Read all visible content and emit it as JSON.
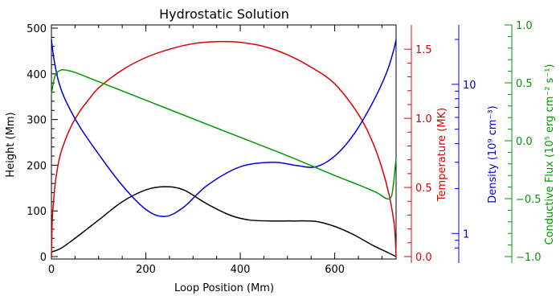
{
  "chart_data": {
    "type": "line",
    "title": "Hydrostatic Solution",
    "xlabel": "Loop Position (Mm)",
    "xlim": [
      0,
      730
    ],
    "xticks": [
      0,
      200,
      400,
      600
    ],
    "grid": false,
    "colors": {
      "height": "#000000",
      "temperature": "#dd0000",
      "density": "#0000dd",
      "flux": "#009900"
    },
    "axes": {
      "height": {
        "label": "Height (Mm)",
        "range": [
          0,
          500
        ],
        "ticks": [
          0,
          100,
          200,
          300,
          400,
          500
        ],
        "tick_labels": [
          "0",
          "100",
          "200",
          "300",
          "400",
          "500"
        ],
        "side": "left"
      },
      "temperature": {
        "label": "Temperature (MK)",
        "range": [
          0,
          1.6
        ],
        "ticks": [
          0,
          0.5,
          1.0,
          1.5
        ],
        "tick_labels": [
          "0.0",
          "0.5",
          "1.0",
          "1.5"
        ],
        "side": "right"
      },
      "density": {
        "label": "Density (10⁹ cm⁻³)",
        "scale": "log",
        "range": [
          0.7,
          25
        ],
        "ticks": [
          1,
          10
        ],
        "tick_labels": [
          "1",
          "10"
        ],
        "side": "right"
      },
      "flux": {
        "label": "Conductive Flux (10⁵ erg cm⁻² s⁻¹)",
        "range": [
          -1.0,
          1.0
        ],
        "ticks": [
          -1.0,
          -0.5,
          0.0,
          0.5,
          1.0
        ],
        "tick_labels": [
          "−1.0",
          "−0.5",
          "0.0",
          "0.5",
          "1.0"
        ],
        "side": "right"
      }
    },
    "series": [
      {
        "key": "height",
        "axis": "height",
        "x": [
          0,
          20,
          50,
          100,
          150,
          200,
          240,
          280,
          330,
          380,
          420,
          470,
          510,
          560,
          600,
          640,
          680,
          710,
          730
        ],
        "y": [
          10,
          18,
          40,
          80,
          120,
          146,
          153,
          146,
          115,
          90,
          80,
          78,
          78,
          77,
          66,
          48,
          25,
          10,
          0
        ]
      },
      {
        "key": "temperature",
        "axis": "temperature",
        "x": [
          0,
          2,
          5,
          10,
          20,
          40,
          60,
          80,
          100,
          150,
          200,
          250,
          300,
          350,
          400,
          450,
          500,
          550,
          600,
          650,
          680,
          700,
          715,
          725,
          728,
          730
        ],
        "y": [
          0,
          0.28,
          0.42,
          0.58,
          0.75,
          0.93,
          1.05,
          1.14,
          1.22,
          1.35,
          1.44,
          1.5,
          1.54,
          1.555,
          1.55,
          1.52,
          1.46,
          1.37,
          1.25,
          1.03,
          0.83,
          0.64,
          0.45,
          0.26,
          0.15,
          0
        ]
      },
      {
        "key": "density",
        "axis": "density",
        "x": [
          0,
          5,
          15,
          30,
          60,
          100,
          150,
          200,
          240,
          280,
          330,
          400,
          470,
          520,
          560,
          600,
          640,
          680,
          710,
          725,
          730
        ],
        "y": [
          20,
          15,
          10.5,
          7.8,
          5.2,
          3.4,
          2.1,
          1.45,
          1.3,
          1.5,
          2.1,
          2.8,
          3.0,
          2.85,
          2.8,
          3.3,
          4.6,
          7.5,
          12,
          17,
          20
        ]
      },
      {
        "key": "flux",
        "axis": "flux",
        "x": [
          0,
          5,
          10,
          20,
          30,
          50,
          100,
          200,
          300,
          400,
          500,
          600,
          650,
          690,
          710,
          720,
          725,
          730
        ],
        "y": [
          0.4,
          0.52,
          0.58,
          0.61,
          0.61,
          0.59,
          0.51,
          0.35,
          0.19,
          0.03,
          -0.13,
          -0.3,
          -0.38,
          -0.45,
          -0.5,
          -0.48,
          -0.35,
          -0.15
        ]
      }
    ]
  }
}
